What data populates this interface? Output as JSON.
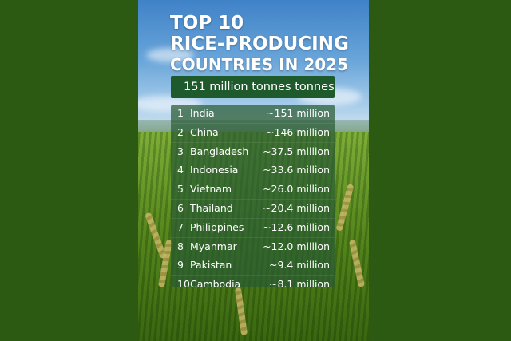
{
  "title": {
    "line1": "TOP 10",
    "line2": "RICE-PRODUCING",
    "line3": "COUNTRIES IN 2025"
  },
  "banner": "151 million tonnes tonnes",
  "rows": [
    {
      "rank": "1",
      "country": "India",
      "value": "~151 million"
    },
    {
      "rank": "2",
      "country": "China",
      "value": "~146 million"
    },
    {
      "rank": "3",
      "country": "Bangladesh",
      "value": "~37.5 million"
    },
    {
      "rank": "4",
      "country": "Indonesia",
      "value": "~33.6 million"
    },
    {
      "rank": "5",
      "country": "Vietnam",
      "value": "~26.0 million"
    },
    {
      "rank": "6",
      "country": "Thailand",
      "value": "~20.4 million"
    },
    {
      "rank": "7",
      "country": "Philippines",
      "value": "~12.6 million"
    },
    {
      "rank": "8",
      "country": "Myanmar",
      "value": "~12.0 million"
    },
    {
      "rank": "9",
      "country": "Pakistan",
      "value": "~9.4 million"
    },
    {
      "rank": "10",
      "country": "Cambodia",
      "value": "~8.1 million"
    }
  ],
  "colors": {
    "page_background": "#2d5a12",
    "banner": "#1f5a2c",
    "list_panel": "#285a32"
  }
}
